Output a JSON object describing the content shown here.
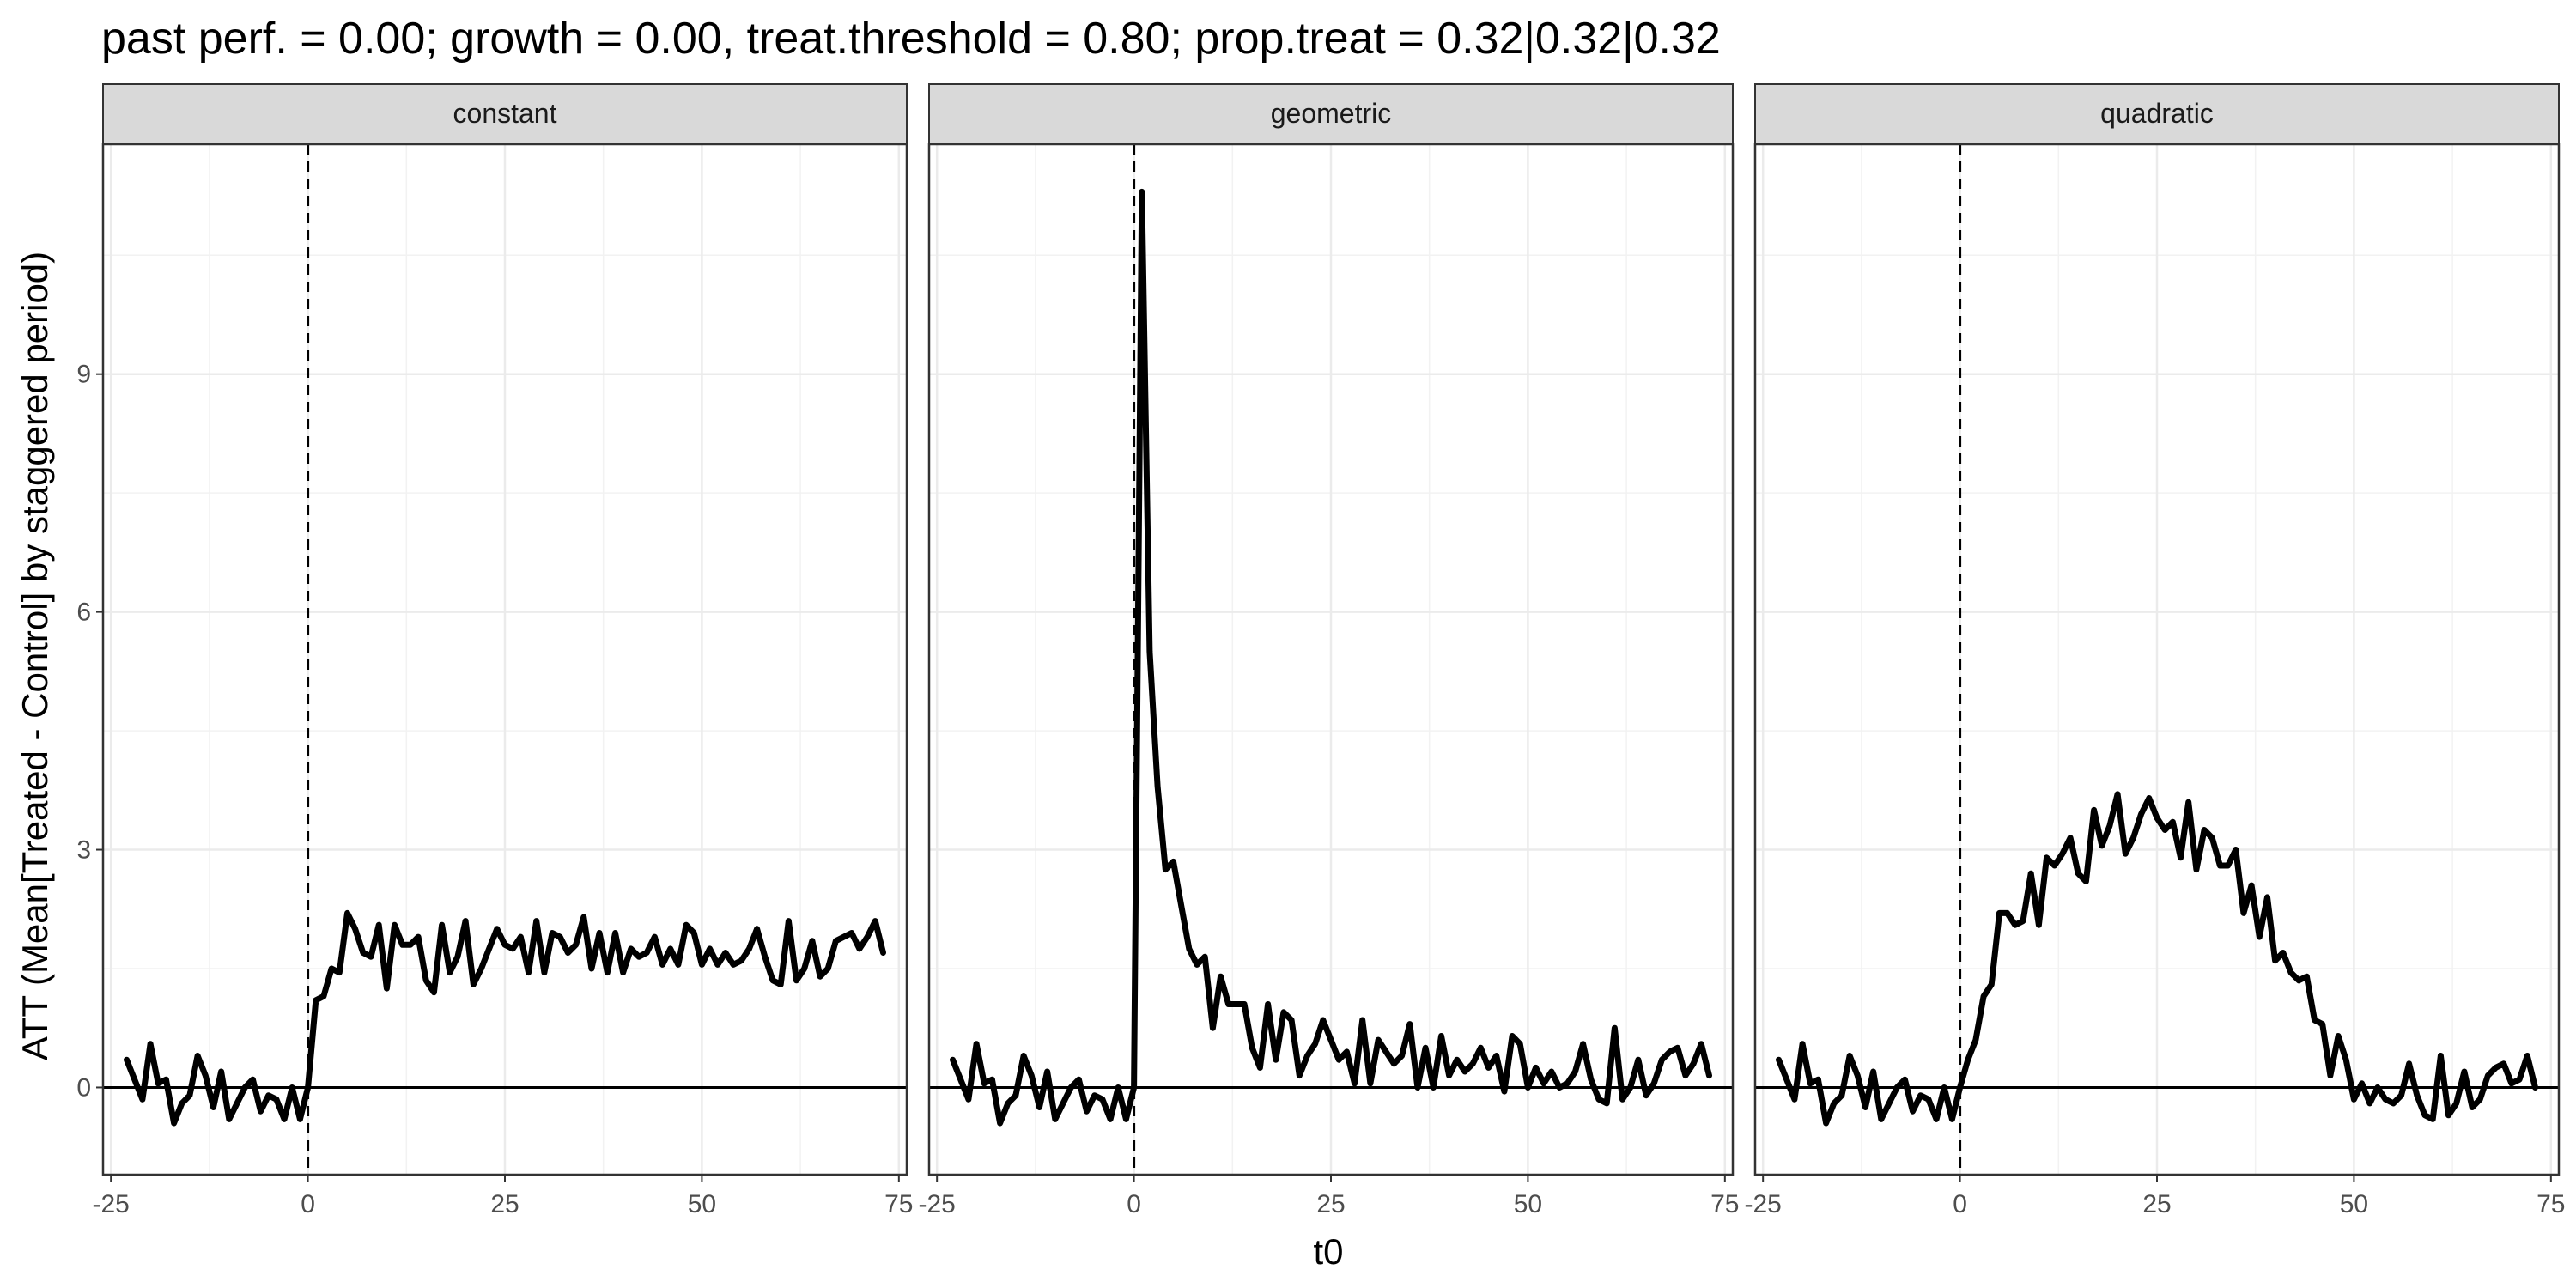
{
  "chart_data": {
    "type": "line",
    "title": "past perf. = 0.00; growth = 0.00,  treat.threshold = 0.80;  prop.treat = 0.32|0.32|0.32",
    "xlabel": "t0",
    "ylabel": "ATT (Mean[Treated - Control] by staggered period)",
    "xlim": [
      -26,
      76
    ],
    "ylim": [
      -1.1,
      11.9
    ],
    "x_ticks": [
      -25,
      0,
      25,
      50,
      75
    ],
    "x_tick_labels": [
      "-25",
      "0",
      "25",
      "50",
      "75"
    ],
    "y_ticks": [
      0,
      3,
      6,
      9
    ],
    "y_tick_labels": [
      "0",
      "3",
      "6",
      "9"
    ],
    "reference_hline": 0,
    "reference_vline": 0,
    "grid": true,
    "line_color": "#000000",
    "x": [
      -23,
      -22,
      -21,
      -20,
      -19,
      -18,
      -17,
      -16,
      -15,
      -14,
      -13,
      -12,
      -11,
      -10,
      -9,
      -8,
      -7,
      -6,
      -5,
      -4,
      -3,
      -2,
      -1,
      0,
      1,
      2,
      3,
      4,
      5,
      6,
      7,
      8,
      9,
      10,
      11,
      12,
      13,
      14,
      15,
      16,
      17,
      18,
      19,
      20,
      21,
      22,
      23,
      24,
      25,
      26,
      27,
      28,
      29,
      30,
      31,
      32,
      33,
      34,
      35,
      36,
      37,
      38,
      39,
      40,
      41,
      42,
      43,
      44,
      45,
      46,
      47,
      48,
      49,
      50,
      51,
      52,
      53,
      54,
      55,
      56,
      57,
      58,
      59,
      60,
      61,
      62,
      63,
      64,
      65,
      66,
      67,
      68,
      69,
      70,
      71,
      72,
      73
    ],
    "panels": [
      {
        "name": "constant",
        "values": [
          0.35,
          0.1,
          -0.15,
          0.55,
          0.05,
          0.1,
          -0.45,
          -0.2,
          -0.1,
          0.4,
          0.15,
          -0.25,
          0.2,
          -0.4,
          -0.2,
          0.0,
          0.1,
          -0.3,
          -0.1,
          -0.15,
          -0.4,
          0.0,
          -0.4,
          0.0,
          1.1,
          1.15,
          1.5,
          1.45,
          2.2,
          2.0,
          1.7,
          1.65,
          2.05,
          1.25,
          2.05,
          1.8,
          1.8,
          1.9,
          1.35,
          1.2,
          2.05,
          1.45,
          1.65,
          2.1,
          1.3,
          1.5,
          1.75,
          2.0,
          1.8,
          1.75,
          1.9,
          1.45,
          2.1,
          1.45,
          1.95,
          1.9,
          1.7,
          1.8,
          2.15,
          1.5,
          1.95,
          1.45,
          1.95,
          1.45,
          1.75,
          1.65,
          1.7,
          1.9,
          1.55,
          1.75,
          1.55,
          2.05,
          1.95,
          1.55,
          1.75,
          1.55,
          1.7,
          1.55,
          1.6,
          1.75,
          2.0,
          1.65,
          1.35,
          1.3,
          2.1,
          1.35,
          1.5,
          1.85,
          1.4,
          1.5,
          1.85,
          1.9,
          1.95,
          1.75,
          1.9,
          2.1,
          1.7
        ]
      },
      {
        "name": "geometric",
        "values": [
          0.35,
          0.1,
          -0.15,
          0.55,
          0.05,
          0.1,
          -0.45,
          -0.2,
          -0.1,
          0.4,
          0.15,
          -0.25,
          0.2,
          -0.4,
          -0.2,
          0.0,
          0.1,
          -0.3,
          -0.1,
          -0.15,
          -0.4,
          0.0,
          -0.4,
          0.0,
          11.3,
          5.5,
          3.8,
          2.75,
          2.85,
          2.3,
          1.75,
          1.55,
          1.65,
          0.75,
          1.4,
          1.05,
          1.05,
          1.05,
          0.5,
          0.25,
          1.05,
          0.35,
          0.95,
          0.85,
          0.15,
          0.4,
          0.55,
          0.85,
          0.6,
          0.35,
          0.45,
          0.05,
          0.85,
          0.05,
          0.6,
          0.45,
          0.3,
          0.4,
          0.8,
          0.0,
          0.5,
          0.0,
          0.65,
          0.15,
          0.35,
          0.2,
          0.3,
          0.5,
          0.25,
          0.4,
          -0.05,
          0.65,
          0.55,
          0.0,
          0.25,
          0.05,
          0.2,
          0.0,
          0.05,
          0.2,
          0.55,
          0.1,
          -0.15,
          -0.2,
          0.75,
          -0.15,
          0.0,
          0.35,
          -0.1,
          0.05,
          0.35,
          0.45,
          0.5,
          0.15,
          0.3,
          0.55,
          0.15
        ]
      },
      {
        "name": "quadratic",
        "values": [
          0.35,
          0.1,
          -0.15,
          0.55,
          0.05,
          0.1,
          -0.45,
          -0.2,
          -0.1,
          0.4,
          0.15,
          -0.25,
          0.2,
          -0.4,
          -0.2,
          0.0,
          0.1,
          -0.3,
          -0.1,
          -0.15,
          -0.4,
          0.0,
          -0.4,
          0.0,
          0.35,
          0.6,
          1.15,
          1.3,
          2.2,
          2.2,
          2.05,
          2.1,
          2.7,
          2.05,
          2.9,
          2.8,
          2.95,
          3.15,
          2.7,
          2.6,
          3.5,
          3.05,
          3.3,
          3.7,
          2.95,
          3.15,
          3.45,
          3.65,
          3.4,
          3.25,
          3.35,
          2.9,
          3.6,
          2.75,
          3.25,
          3.15,
          2.8,
          2.8,
          3.0,
          2.2,
          2.55,
          1.9,
          2.4,
          1.6,
          1.7,
          1.45,
          1.35,
          1.4,
          0.85,
          0.8,
          0.15,
          0.65,
          0.35,
          -0.15,
          0.05,
          -0.2,
          0.0,
          -0.15,
          -0.2,
          -0.1,
          0.3,
          -0.1,
          -0.35,
          -0.4,
          0.4,
          -0.35,
          -0.2,
          0.2,
          -0.25,
          -0.15,
          0.15,
          0.25,
          0.3,
          0.05,
          0.1,
          0.4,
          0.0
        ]
      }
    ]
  }
}
